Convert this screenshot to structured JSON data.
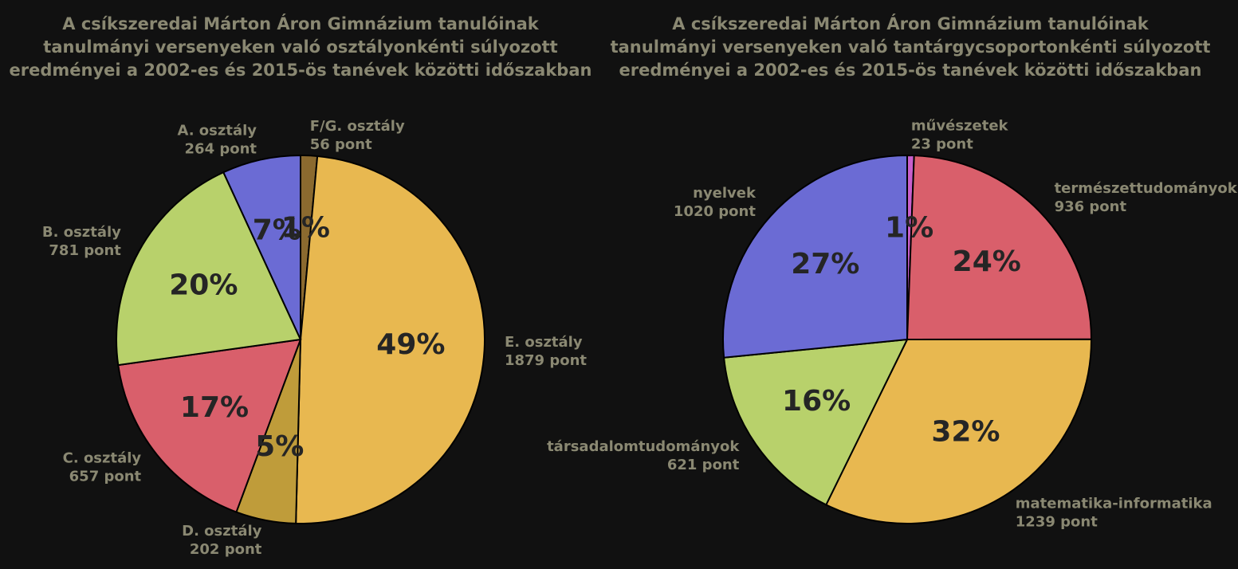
{
  "chart_data": [
    {
      "type": "pie",
      "title": [
        "A csíkszeredai Márton Áron Gimnázium tanulóinak",
        "tanulmányi versenyeken való osztályonkénti súlyozott",
        "eredményei a 2002-es és 2015-ös tanévek közötti időszakban"
      ],
      "slices": [
        {
          "label": "F/G. osztály",
          "value_text": "56 pont",
          "value": 56,
          "pct": "1%",
          "color": "#8b6a2f"
        },
        {
          "label": "E. osztály",
          "value_text": "1879 pont",
          "value": 1879,
          "pct": "49%",
          "color": "#e8b850"
        },
        {
          "label": "D. osztály",
          "value_text": "202 pont",
          "value": 202,
          "pct": "5%",
          "color": "#bf9c3a"
        },
        {
          "label": "C. osztály",
          "value_text": "657 pont",
          "value": 657,
          "pct": "17%",
          "color": "#d95f6b"
        },
        {
          "label": "B. osztály",
          "value_text": "781 pont",
          "value": 781,
          "pct": "20%",
          "color": "#b8d16b"
        },
        {
          "label": "A. osztály",
          "value_text": "264 pont",
          "value": 264,
          "pct": "7%",
          "color": "#6b6bd4"
        }
      ]
    },
    {
      "type": "pie",
      "title": [
        "A csíkszeredai Márton Áron Gimnázium tanulóinak",
        "tanulmányi versenyeken való tantárgycsoportonkénti súlyozott",
        "eredményei a 2002-es és 2015-ös tanévek közötti időszakban"
      ],
      "slices": [
        {
          "label": "művészetek",
          "value_text": "23 pont",
          "value": 23,
          "pct": "1%",
          "color": "#c85fcb"
        },
        {
          "label": "természettudományok",
          "value_text": "936 pont",
          "value": 936,
          "pct": "24%",
          "color": "#d95f6b"
        },
        {
          "label": "matematika-informatika",
          "value_text": "1239 pont",
          "value": 1239,
          "pct": "32%",
          "color": "#e8b850"
        },
        {
          "label": "társadalomtudományok",
          "value_text": "621 pont",
          "value": 621,
          "pct": "16%",
          "color": "#b8d16b"
        },
        {
          "label": "nyelvek",
          "value_text": "1020 pont",
          "value": 1020,
          "pct": "27%",
          "color": "#6b6bd4"
        }
      ]
    }
  ]
}
